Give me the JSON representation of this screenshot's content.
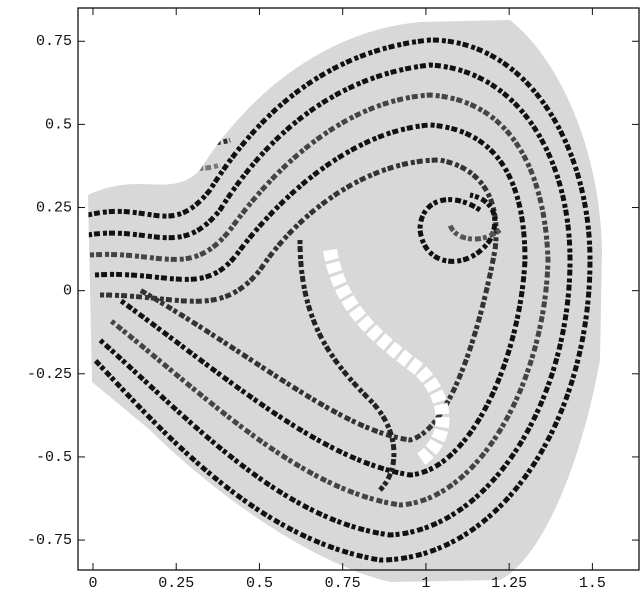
{
  "chart_data": {
    "type": "image",
    "xlim": [
      -0.045,
      1.64
    ],
    "ylim": [
      -0.84,
      0.85
    ],
    "xticks": [
      0,
      0.25,
      0.5,
      0.75,
      1,
      1.25,
      1.5
    ],
    "yticks": [
      -0.75,
      -0.5,
      -0.25,
      0,
      0.25,
      0.5,
      0.75
    ]
  }
}
